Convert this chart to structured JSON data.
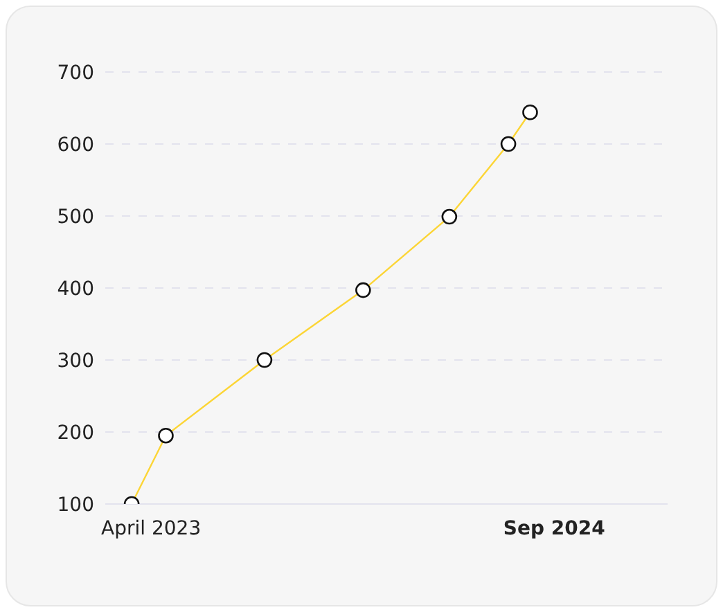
{
  "chart_data": {
    "type": "line",
    "x": [
      "2023-03-07",
      "2023-04-20",
      "2023-08-25",
      "2023-12-30",
      "2024-04-19",
      "2024-07-04",
      "2024-08-01"
    ],
    "series": [
      {
        "color": "#fcd535",
        "values": [
          100,
          195,
          300,
          397,
          499,
          600,
          644
        ]
      }
    ],
    "xlim": [
      "2023-02-01",
      "2025-01-25"
    ],
    "xticks": [
      {
        "value": "2023-04-01",
        "label": "April 2023"
      },
      {
        "value": "2024-09-01",
        "label": "Sep 2024"
      }
    ],
    "ylim": [
      100,
      700
    ],
    "yticks": [
      100,
      200,
      300,
      400,
      500,
      600,
      700
    ],
    "grid": "y",
    "legend": false,
    "marker": "circle",
    "line_style": "solid"
  }
}
